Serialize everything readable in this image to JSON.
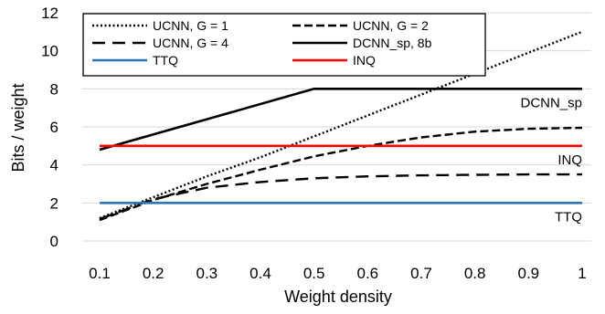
{
  "chart_data": {
    "type": "line",
    "xlabel": "Weight density",
    "ylabel": "Bits / weight",
    "xlim": [
      0.1,
      1.0
    ],
    "ylim": [
      0,
      12
    ],
    "yticks": [
      "0",
      "2",
      "4",
      "6",
      "8",
      "10",
      "12"
    ],
    "xticks": [
      "0.1",
      "0.2",
      "0.3",
      "0.4",
      "0.5",
      "0.6",
      "0.7",
      "0.8",
      "0.9",
      "1"
    ],
    "grid": "horizontal",
    "legend": "top-left",
    "series": [
      {
        "name": "UCNN, G = 1",
        "style": "dotted",
        "color": "#000000",
        "x": [
          0.1,
          0.2,
          0.3,
          0.4,
          0.5,
          0.6,
          0.7,
          0.8,
          0.9,
          1.0
        ],
        "y": [
          1.2,
          2.3,
          3.4,
          4.4,
          5.5,
          6.6,
          7.7,
          8.8,
          9.9,
          11.0
        ]
      },
      {
        "name": "UCNN, G = 2",
        "style": "dashed",
        "color": "#000000",
        "x": [
          0.1,
          0.2,
          0.3,
          0.4,
          0.5,
          0.6,
          0.7,
          0.8,
          0.9,
          1.0
        ],
        "y": [
          1.1,
          2.15,
          3.0,
          3.75,
          4.45,
          5.0,
          5.45,
          5.75,
          5.9,
          5.95
        ]
      },
      {
        "name": "UCNN, G = 4",
        "style": "dashed-long",
        "color": "#000000",
        "x": [
          0.1,
          0.2,
          0.3,
          0.4,
          0.5,
          0.6,
          0.7,
          0.8,
          0.9,
          1.0
        ],
        "y": [
          1.15,
          2.2,
          2.8,
          3.1,
          3.3,
          3.4,
          3.45,
          3.48,
          3.5,
          3.5
        ]
      },
      {
        "name": "DCNN_sp, 8b",
        "style": "solid",
        "color": "#000000",
        "x": [
          0.1,
          0.5,
          1.0
        ],
        "y": [
          4.8,
          8.0,
          8.0
        ]
      },
      {
        "name": "TTQ",
        "style": "solid",
        "color": "#2e75b6",
        "x": [
          0.1,
          1.0
        ],
        "y": [
          2.0,
          2.0
        ]
      },
      {
        "name": "INQ",
        "style": "solid",
        "color": "#ff0000",
        "x": [
          0.1,
          1.0
        ],
        "y": [
          5.0,
          5.0
        ]
      }
    ],
    "annotations": [
      {
        "text": "DCNN_sp",
        "x": 1.0,
        "y": 8.0
      },
      {
        "text": "INQ",
        "x": 1.0,
        "y": 5.0
      },
      {
        "text": "TTQ",
        "x": 1.0,
        "y": 2.0
      }
    ]
  }
}
